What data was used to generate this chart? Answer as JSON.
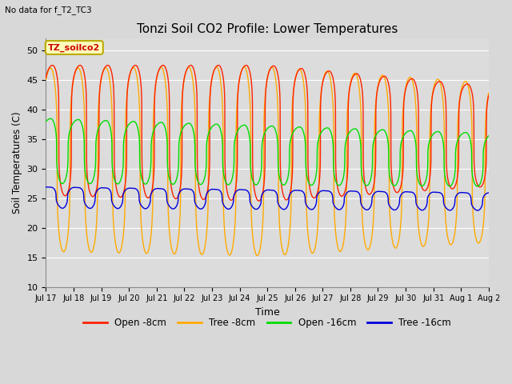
{
  "title": "Tonzi Soil CO2 Profile: Lower Temperatures",
  "subtitle": "No data for f_T2_TC3",
  "xlabel": "Time",
  "ylabel": "Soil Temperatures (C)",
  "ylim": [
    10,
    52
  ],
  "yticks": [
    10,
    15,
    20,
    25,
    30,
    35,
    40,
    45,
    50
  ],
  "plot_bg_color": "#dcdcdc",
  "fig_bg_color": "#d8d8d8",
  "legend_labels": [
    "Open -8cm",
    "Tree -8cm",
    "Open -16cm",
    "Tree -16cm"
  ],
  "legend_colors": [
    "#ff2200",
    "#ffaa00",
    "#00dd00",
    "#0000dd"
  ],
  "inset_label": "TZ_soilco2",
  "inset_bg": "#ffffbb",
  "inset_border": "#bbaa00",
  "xlim_days": 16
}
